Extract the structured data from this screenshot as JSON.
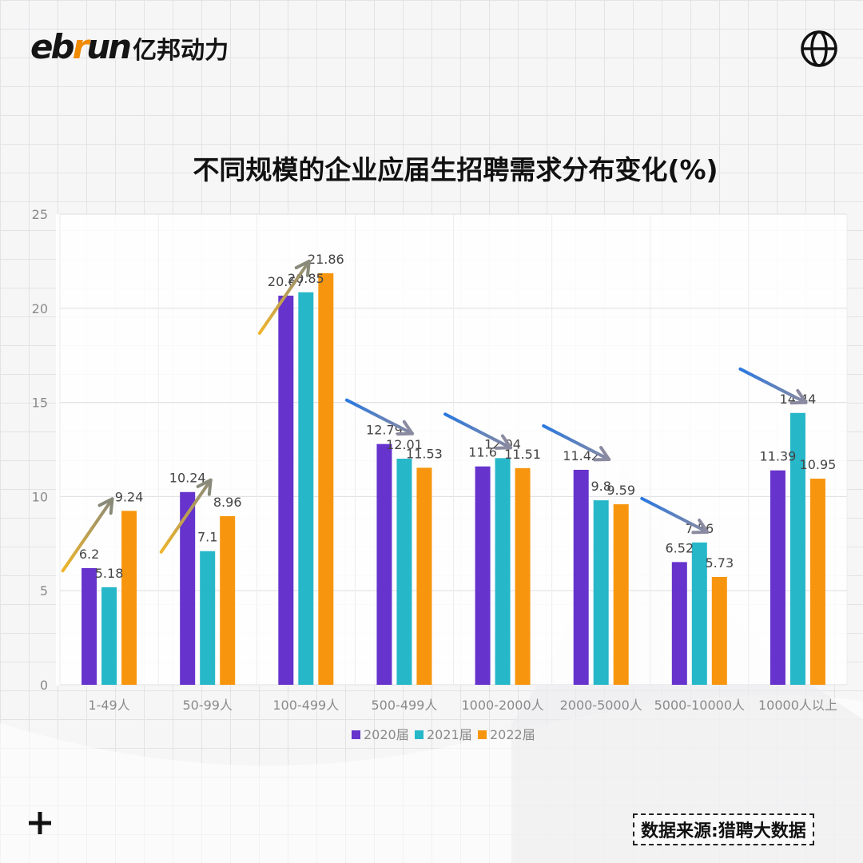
{
  "brand": {
    "name_en_prefix": "eb",
    "name_en_accent": "r",
    "name_en_suffix": "un",
    "name_cn": "亿邦动力"
  },
  "footer": {
    "source": "数据来源:猎聘大数据"
  },
  "icons": {
    "globe": "globe-icon",
    "plus": "plus-icon"
  },
  "chart_data": {
    "type": "bar",
    "title": "不同规模的企业应届生招聘需求分布变化(%)",
    "xlabel": "",
    "ylabel": "",
    "ylim": [
      0,
      25
    ],
    "yticks": [
      0,
      5,
      10,
      15,
      20,
      25
    ],
    "grid": true,
    "legend_position": "bottom",
    "categories": [
      "1-49人",
      "50-99人",
      "100-499人",
      "500-499人",
      "1000-2000人",
      "2000-5000人",
      "5000-10000人",
      "10000人以上"
    ],
    "series": [
      {
        "name": "2020届",
        "color": "#6633cc",
        "values": [
          6.2,
          10.24,
          20.67,
          12.79,
          11.6,
          11.42,
          6.52,
          11.39
        ]
      },
      {
        "name": "2021届",
        "color": "#26b7c9",
        "values": [
          5.18,
          7.1,
          20.85,
          12.01,
          12.04,
          9.8,
          7.56,
          14.44
        ]
      },
      {
        "name": "2022届",
        "color": "#f7960e",
        "values": [
          9.24,
          8.96,
          21.86,
          11.53,
          11.51,
          9.59,
          5.73,
          10.95
        ]
      }
    ],
    "value_labels": [
      [
        "6.2",
        "10.24",
        "20.67",
        "12.79",
        "11.6",
        "11.42",
        "6.52",
        "11.39"
      ],
      [
        "5.18",
        "7.1",
        "20.85",
        "12.01",
        "12.04",
        "9.8",
        "7.56",
        "14.44"
      ],
      [
        "9.24",
        "8.96",
        "21.86",
        "11.53",
        "11.51",
        "9.59",
        "5.73",
        "10.95"
      ]
    ],
    "trend_arrows": [
      "up",
      "up",
      "up",
      "down",
      "down",
      "down",
      "down",
      "down"
    ],
    "arrow_colors": {
      "up": "#e0b13a",
      "down": "#3a78d8"
    }
  }
}
